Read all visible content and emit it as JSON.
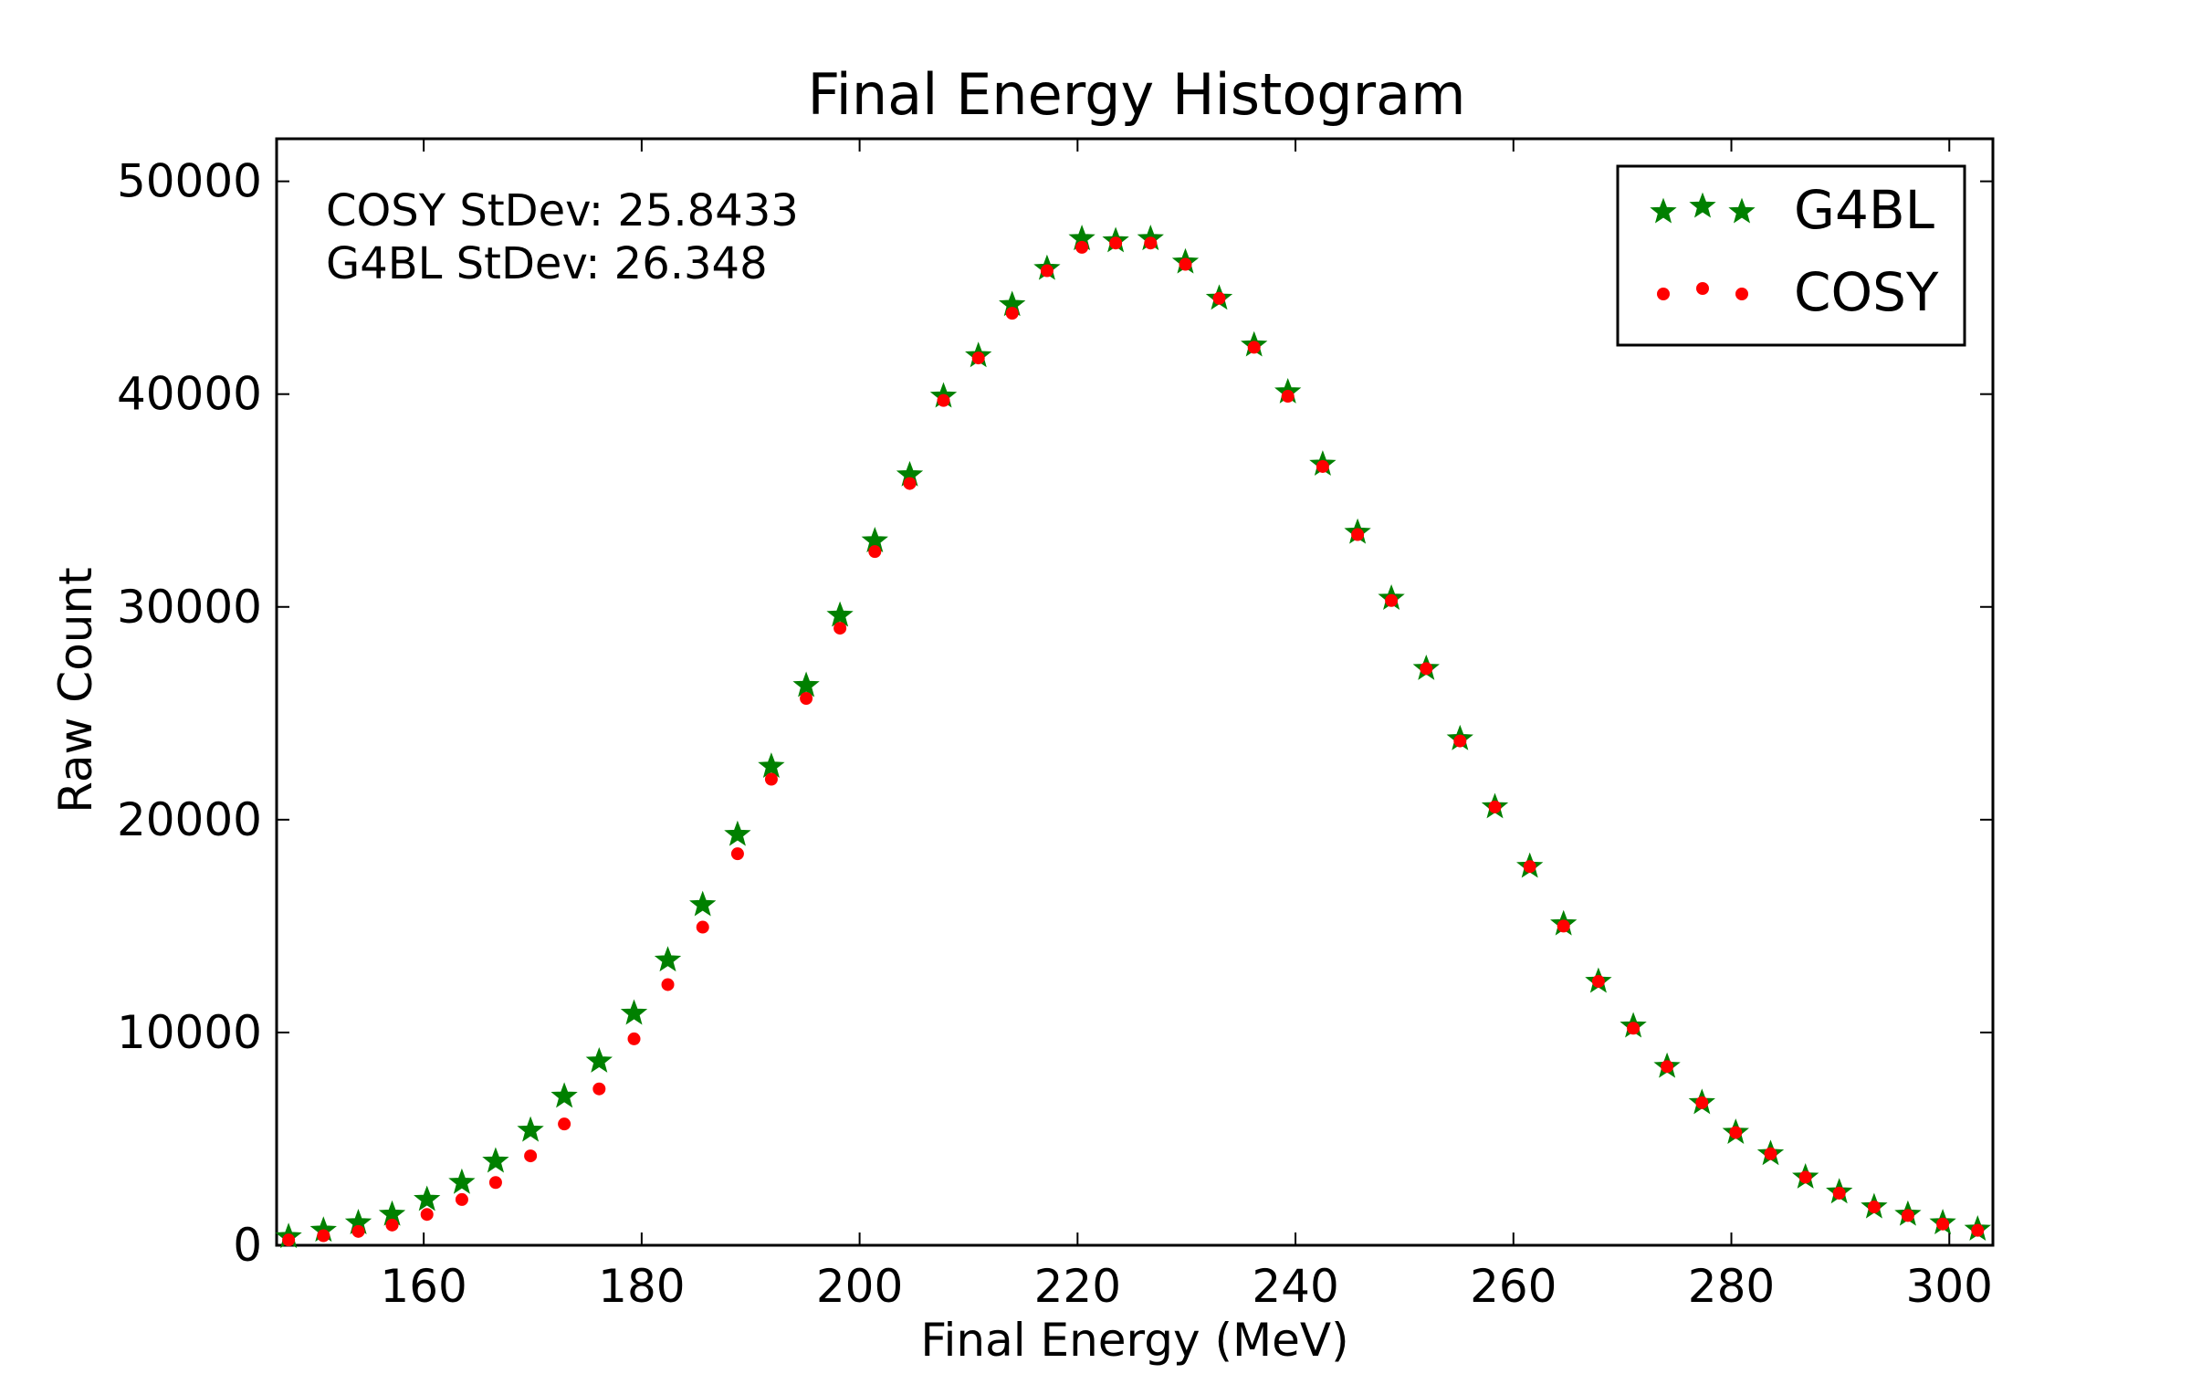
{
  "chart_data": {
    "type": "scatter",
    "title": "Final Energy Histogram",
    "xlabel": "Final Energy (MeV)",
    "ylabel": "Raw Count",
    "xlim": [
      146.5,
      304
    ],
    "ylim": [
      0,
      52000
    ],
    "xticks": [
      160,
      180,
      200,
      220,
      240,
      260,
      280,
      300
    ],
    "yticks": [
      0,
      10000,
      20000,
      30000,
      40000,
      50000
    ],
    "grid": false,
    "legend_position": "top-right",
    "annotations": [
      "COSY StDev: 25.8433",
      "G4BL StDev: 26.348"
    ],
    "x": [
      147.6,
      150.8,
      154.0,
      157.1,
      160.3,
      163.5,
      166.6,
      169.8,
      172.9,
      176.1,
      179.3,
      182.4,
      185.6,
      188.8,
      191.9,
      195.1,
      198.2,
      201.4,
      204.6,
      207.7,
      210.9,
      214.0,
      217.2,
      220.4,
      223.5,
      226.7,
      229.9,
      233.0,
      236.2,
      239.3,
      242.5,
      245.7,
      248.8,
      252.0,
      255.1,
      258.3,
      261.5,
      264.6,
      267.8,
      271.0,
      274.1,
      277.3,
      280.4,
      283.6,
      286.8,
      289.9,
      293.1,
      296.2,
      299.4,
      302.6
    ],
    "series": [
      {
        "name": "G4BL",
        "marker": "star",
        "color": "#008000",
        "values": [
          400,
          700,
          1050,
          1450,
          2150,
          2950,
          3950,
          5400,
          7000,
          8650,
          10900,
          13400,
          16000,
          19300,
          22500,
          26300,
          29600,
          33100,
          36200,
          39900,
          41800,
          44200,
          45900,
          47300,
          47200,
          47300,
          46200,
          44500,
          42300,
          40100,
          36700,
          33500,
          30400,
          27100,
          23800,
          20600,
          17800,
          15100,
          12400,
          10300,
          8400,
          6700,
          5300,
          4300,
          3200,
          2500,
          1800,
          1450,
          1050,
          750
        ]
      },
      {
        "name": "COSY",
        "marker": "circle",
        "color": "#ff0000",
        "values": [
          250,
          450,
          650,
          950,
          1450,
          2150,
          2950,
          4200,
          5700,
          7350,
          9700,
          12250,
          14950,
          18400,
          21900,
          25700,
          29000,
          32600,
          35800,
          39700,
          41700,
          43800,
          45800,
          46900,
          47100,
          47100,
          46100,
          44500,
          42200,
          39900,
          36600,
          33400,
          30300,
          27100,
          23700,
          20600,
          17800,
          15000,
          12400,
          10200,
          8400,
          6700,
          5300,
          4300,
          3200,
          2450,
          1800,
          1400,
          1000,
          700
        ]
      }
    ]
  }
}
